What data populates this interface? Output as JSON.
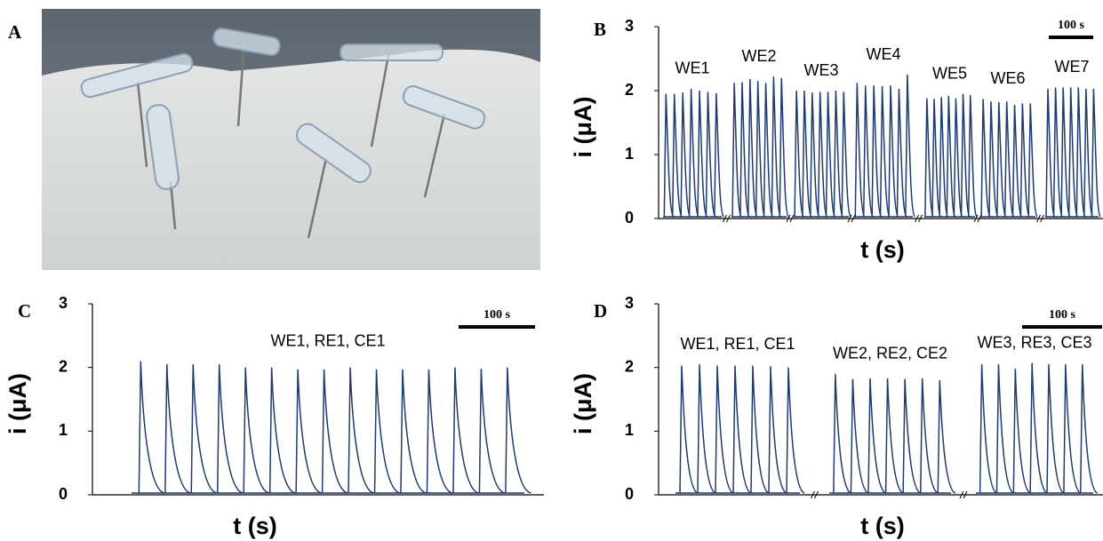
{
  "panel_a": {
    "label": "A"
  },
  "chart_data": [
    {
      "type": "peaks",
      "label": "B",
      "ylabel": "i (μA)",
      "xlabel": "t (s)",
      "scalebar": "100 s",
      "ylim": [
        0,
        3
      ],
      "yticks": [
        0,
        1,
        2,
        3
      ],
      "series": [
        {
          "name": "WE1",
          "color": "#1f3a6e",
          "values": [
            1.95,
            1.95,
            1.97,
            2.03,
            2.0,
            1.98,
            1.96
          ]
        },
        {
          "name": "WE2",
          "color": "#1f3a6e",
          "values": [
            2.12,
            2.13,
            2.18,
            2.15,
            2.12,
            2.22,
            2.2
          ]
        },
        {
          "name": "WE3",
          "color": "#1f3a6e",
          "values": [
            2.0,
            2.0,
            1.97,
            1.98,
            1.98,
            2.0,
            1.98
          ]
        },
        {
          "name": "WE4",
          "color": "#1f3a6e",
          "values": [
            2.12,
            2.08,
            2.08,
            2.07,
            2.08,
            2.03,
            2.25
          ]
        },
        {
          "name": "WE5",
          "color": "#1f3a6e",
          "values": [
            1.88,
            1.87,
            1.9,
            1.92,
            1.88,
            1.95,
            1.93
          ]
        },
        {
          "name": "WE6",
          "color": "#1f3a6e",
          "values": [
            1.87,
            1.83,
            1.82,
            1.83,
            1.78,
            1.8,
            1.8
          ]
        },
        {
          "name": "WE7",
          "color": "#1f3a6e",
          "values": [
            2.03,
            2.05,
            2.05,
            2.05,
            2.05,
            2.03,
            2.03
          ]
        }
      ]
    },
    {
      "type": "peaks",
      "label": "C",
      "ylabel": "i (μA)",
      "xlabel": "t (s)",
      "scalebar": "100 s",
      "ylim": [
        0,
        3
      ],
      "yticks": [
        0,
        1,
        2,
        3
      ],
      "series": [
        {
          "name": "WE1, RE1, CE1",
          "color": "#1f3a6e",
          "values": [
            2.1,
            2.05,
            2.05,
            2.05,
            2.0,
            2.0,
            1.97,
            1.97,
            2.0,
            1.97,
            1.97,
            1.97,
            2.0,
            1.98,
            2.0
          ]
        }
      ]
    },
    {
      "type": "peaks",
      "label": "D",
      "ylabel": "i (μA)",
      "xlabel": "t (s)",
      "scalebar": "100 s",
      "ylim": [
        0,
        3
      ],
      "yticks": [
        0,
        1,
        2,
        3
      ],
      "series": [
        {
          "name": "WE1, RE1, CE1",
          "color": "#1f3a6e",
          "values": [
            2.03,
            2.05,
            2.03,
            2.03,
            2.03,
            2.02,
            2.0
          ]
        },
        {
          "name": "WE2, RE2, CE2",
          "color": "#1f3a6e",
          "values": [
            1.9,
            1.82,
            1.83,
            1.83,
            1.82,
            1.83,
            1.8
          ]
        },
        {
          "name": "WE3, RE3, CE3",
          "color": "#1f3a6e",
          "values": [
            2.05,
            2.05,
            1.98,
            2.07,
            2.05,
            2.05,
            2.05
          ]
        }
      ]
    }
  ]
}
